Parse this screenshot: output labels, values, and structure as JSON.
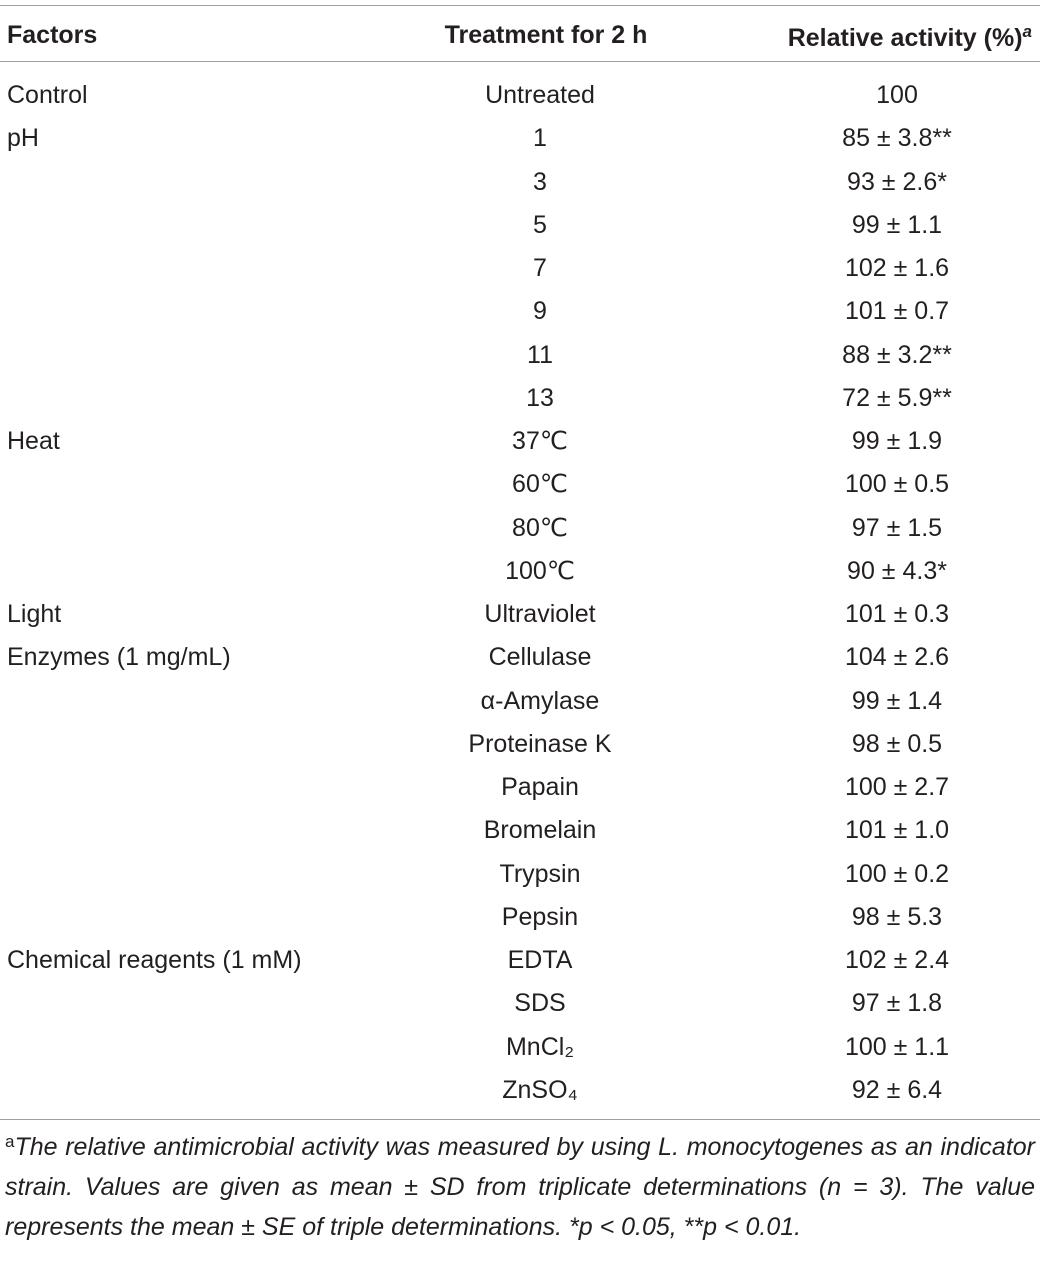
{
  "table": {
    "header": [
      {
        "text": "Factors"
      },
      {
        "text": "Treatment for 2 h"
      },
      {
        "text": "Relative activity (%)",
        "sup": "a"
      }
    ],
    "groups": [
      {
        "factor": "Control",
        "rows": [
          {
            "treatment": "Untreated",
            "activity": "100"
          }
        ]
      },
      {
        "factor": "pH",
        "rows": [
          {
            "treatment": "1",
            "activity": "85 ± 3.8**"
          },
          {
            "treatment": "3",
            "activity": "93 ± 2.6*"
          },
          {
            "treatment": "5",
            "activity": "99 ± 1.1"
          },
          {
            "treatment": "7",
            "activity": "102 ± 1.6"
          },
          {
            "treatment": "9",
            "activity": "101 ± 0.7"
          },
          {
            "treatment": "11",
            "activity": "88 ± 3.2**"
          },
          {
            "treatment": "13",
            "activity": "72 ± 5.9**"
          }
        ]
      },
      {
        "factor": "Heat",
        "rows": [
          {
            "treatment": "37℃",
            "activity": "99 ± 1.9"
          },
          {
            "treatment": "60℃",
            "activity": "100 ± 0.5"
          },
          {
            "treatment": "80℃",
            "activity": "97 ± 1.5"
          },
          {
            "treatment": "100℃",
            "activity": "90 ± 4.3*"
          }
        ]
      },
      {
        "factor": "Light",
        "rows": [
          {
            "treatment": "Ultraviolet",
            "activity": "101 ± 0.3"
          }
        ]
      },
      {
        "factor": "Enzymes (1 mg/mL)",
        "rows": [
          {
            "treatment": "Cellulase",
            "activity": "104 ± 2.6"
          },
          {
            "treatment": "α-Amylase",
            "activity": "99 ± 1.4"
          },
          {
            "treatment": "Proteinase K",
            "activity": "98 ± 0.5"
          },
          {
            "treatment": "Papain",
            "activity": "100 ± 2.7"
          },
          {
            "treatment": "Bromelain",
            "activity": "101 ± 1.0"
          },
          {
            "treatment": "Trypsin",
            "activity": "100 ± 0.2"
          },
          {
            "treatment": "Pepsin",
            "activity": "98 ± 5.3"
          }
        ]
      },
      {
        "factor": "Chemical reagents (1 mM)",
        "rows": [
          {
            "treatment": "EDTA",
            "activity": "102 ± 2.4"
          },
          {
            "treatment": "SDS",
            "activity": "97 ± 1.8"
          },
          {
            "treatment": "MnCl₂",
            "activity": "100 ± 1.1"
          },
          {
            "treatment": "ZnSO₄",
            "activity": "92 ± 6.4"
          }
        ]
      }
    ],
    "footnote": {
      "marker": "a",
      "text": "The relative antimicrobial activity was measured by using L. monocytogenes as an indicator strain. Values are given as mean ± SD from triplicate determinations (n = 3). The value represents the mean ± SE of triple determinations. *p < 0.05, **p < 0.01."
    }
  }
}
